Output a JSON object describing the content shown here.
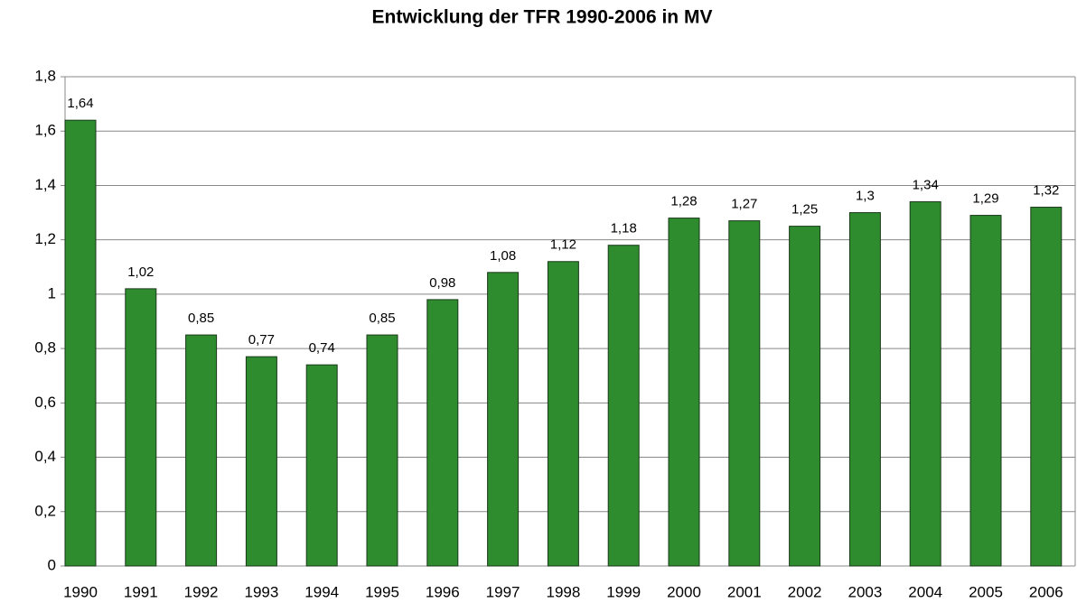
{
  "chart_data": {
    "type": "bar",
    "title": "Entwicklung der TFR 1990-2006 in MV",
    "categories": [
      "1990",
      "1991",
      "1992",
      "1993",
      "1994",
      "1995",
      "1996",
      "1997",
      "1998",
      "1999",
      "2000",
      "2001",
      "2002",
      "2003",
      "2004",
      "2005",
      "2006"
    ],
    "values": [
      1.64,
      1.02,
      0.85,
      0.77,
      0.74,
      0.85,
      0.98,
      1.08,
      1.12,
      1.18,
      1.28,
      1.27,
      1.25,
      1.3,
      1.34,
      1.29,
      1.32
    ],
    "value_labels": [
      "1,64",
      "1,02",
      "0,85",
      "0,77",
      "0,74",
      "0,85",
      "0,98",
      "1,08",
      "1,12",
      "1,18",
      "1,28",
      "1,27",
      "1,25",
      "1,3",
      "1,34",
      "1,29",
      "1,32"
    ],
    "color": "#2e8b2e",
    "ylim": [
      0,
      1.8
    ],
    "yticks": [
      0,
      {
        "value": 0.2,
        "label": "0,2"
      },
      {
        "value": 0.4,
        "label": "0,4"
      },
      {
        "value": 0.6,
        "label": "0,6"
      },
      {
        "value": 0.8,
        "label": "0,8"
      },
      1,
      {
        "value": 1.2,
        "label": "1,2"
      },
      {
        "value": 1.4,
        "label": "1,4"
      },
      {
        "value": 1.6,
        "label": "1,6"
      },
      {
        "value": 1.8,
        "label": "1,8"
      }
    ],
    "grid": true
  }
}
